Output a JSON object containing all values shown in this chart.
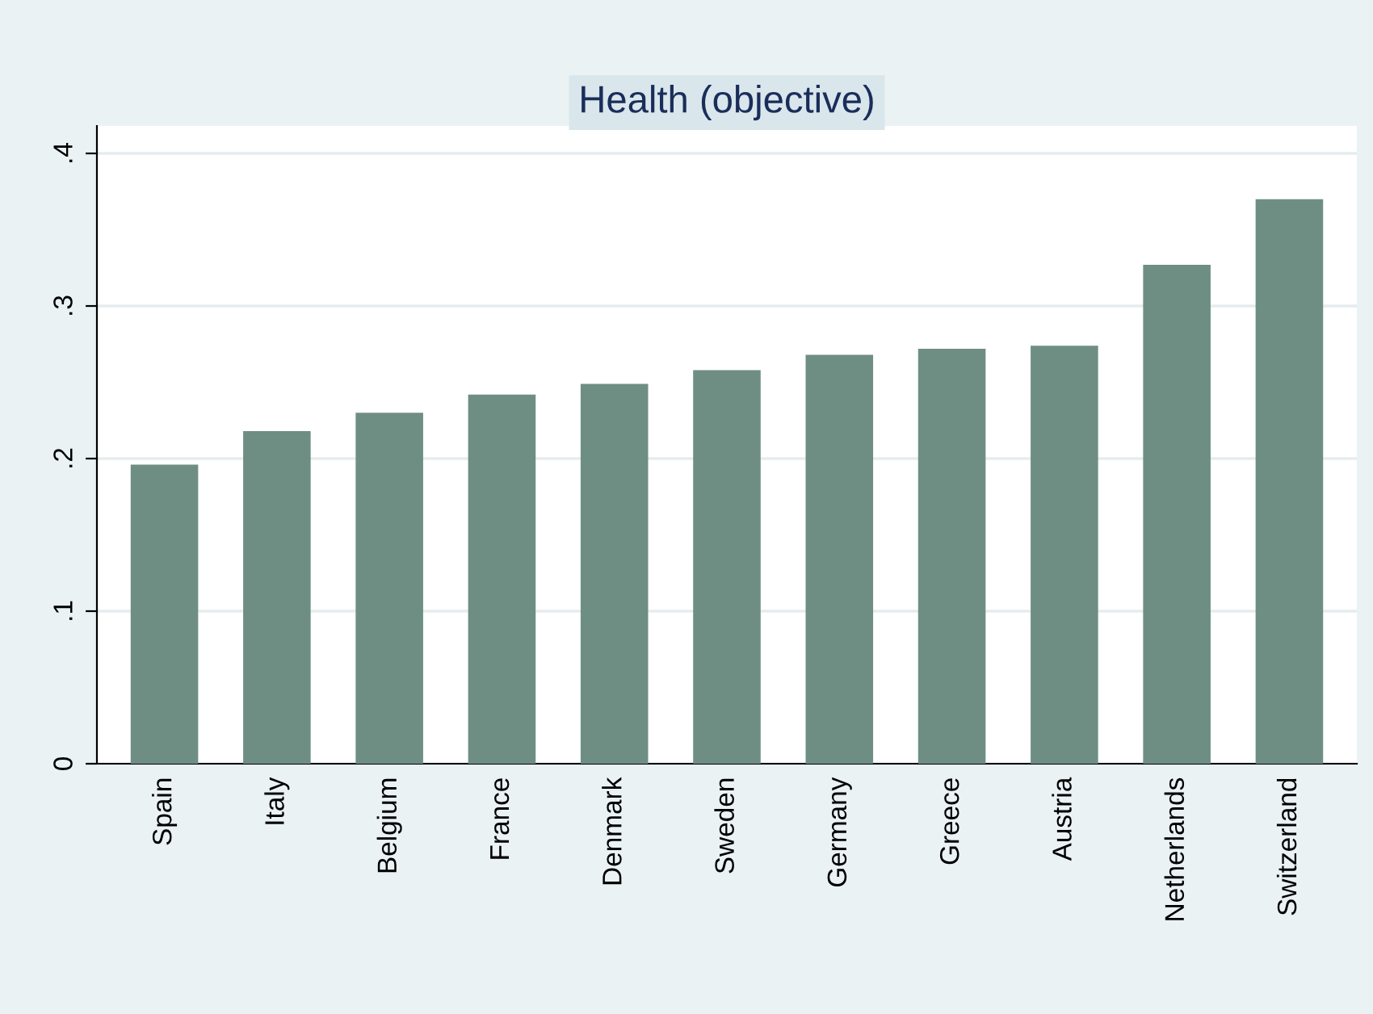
{
  "chart_data": {
    "type": "bar",
    "title": "Health (objective)",
    "categories": [
      "Spain",
      "Italy",
      "Belgium",
      "France",
      "Denmark",
      "Sweden",
      "Germany",
      "Greece",
      "Austria",
      "Netherlands",
      "Switzerland"
    ],
    "values": [
      0.196,
      0.218,
      0.23,
      0.242,
      0.249,
      0.258,
      0.268,
      0.272,
      0.274,
      0.327,
      0.37
    ],
    "color": "#6e8e84",
    "ylim": [
      0,
      0.418
    ],
    "yticks": [
      {
        "value": 0,
        "label": "0"
      },
      {
        "value": 0.1,
        "label": ".1"
      },
      {
        "value": 0.2,
        "label": ".2"
      },
      {
        "value": 0.3,
        "label": ".3"
      },
      {
        "value": 0.4,
        "label": ".4"
      }
    ],
    "grid": "y"
  }
}
